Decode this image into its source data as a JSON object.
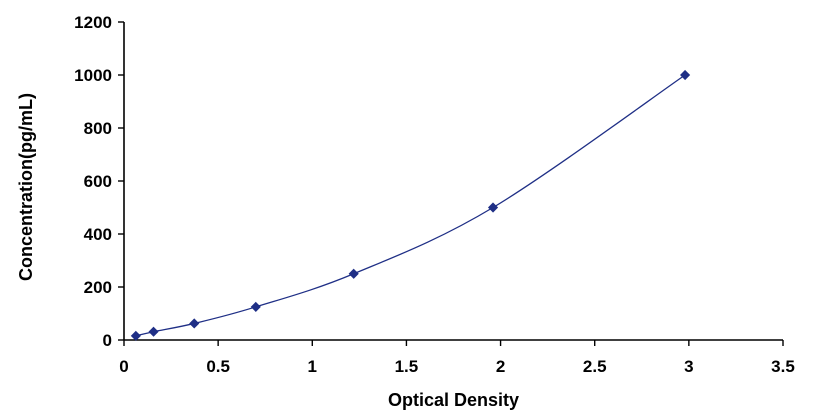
{
  "chart_data": {
    "type": "scatter",
    "title": "",
    "xlabel": "Optical Density",
    "ylabel": "Concentration(pg/mL)",
    "xlim": [
      0,
      3.5
    ],
    "ylim": [
      0,
      1200
    ],
    "x_ticks": [
      "0",
      "0.5",
      "1",
      "1.5",
      "2",
      "2.5",
      "3",
      "3.5"
    ],
    "x_tick_values": [
      0,
      0.5,
      1,
      1.5,
      2,
      2.5,
      3,
      3.5
    ],
    "y_ticks": [
      "0",
      "200",
      "400",
      "600",
      "800",
      "1000",
      "1200"
    ],
    "y_tick_values": [
      0,
      200,
      400,
      600,
      800,
      1000,
      1200
    ],
    "grid": false,
    "legend": "none",
    "series": [
      {
        "color": "#1f2f86",
        "marker": "diamond",
        "smooth_line": true,
        "points": [
          {
            "x": 0.063,
            "y": 15.6
          },
          {
            "x": 0.157,
            "y": 31.2
          },
          {
            "x": 0.373,
            "y": 62.5
          },
          {
            "x": 0.7,
            "y": 125
          },
          {
            "x": 1.22,
            "y": 250
          },
          {
            "x": 1.96,
            "y": 500
          },
          {
            "x": 2.98,
            "y": 1000
          }
        ]
      }
    ]
  }
}
